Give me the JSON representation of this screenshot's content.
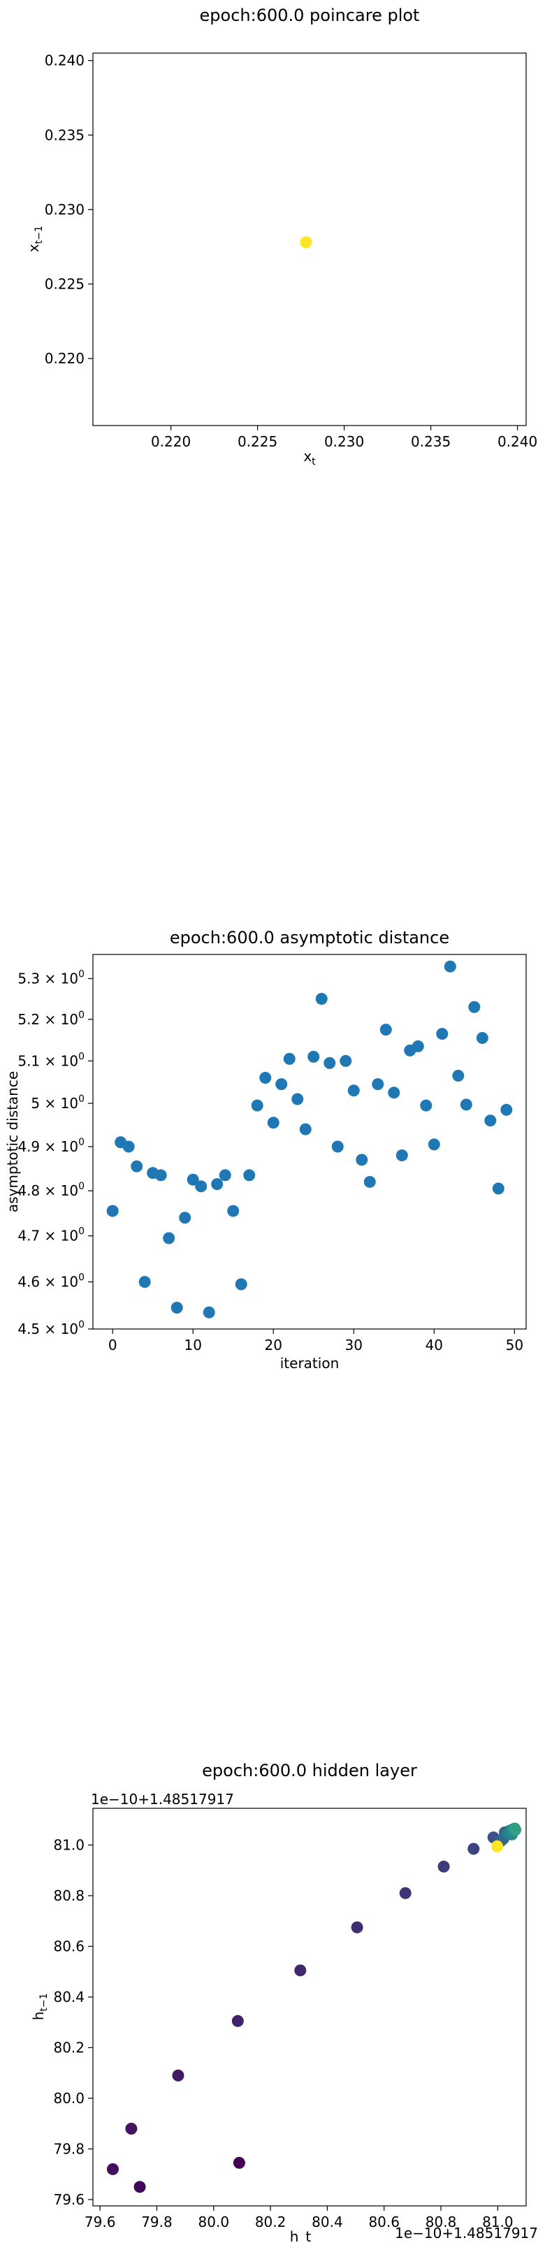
{
  "chart_data": [
    {
      "type": "scatter",
      "title": "epoch:600.0 poincare plot",
      "xlabel": "x_t",
      "ylabel": "x_{t-1}",
      "xlim": [
        0.2155,
        0.2405
      ],
      "ylim": [
        0.2155,
        0.2405
      ],
      "x_ticks": [
        0.22,
        0.225,
        0.23,
        0.235,
        0.24
      ],
      "x_tick_labels": [
        "0.220",
        "0.225",
        "0.230",
        "0.235",
        "0.240"
      ],
      "y_ticks": [
        0.22,
        0.225,
        0.23,
        0.235,
        0.24
      ],
      "y_tick_labels": [
        "0.220",
        "0.225",
        "0.230",
        "0.235",
        "0.240"
      ],
      "points": [
        {
          "x": 0.2278,
          "y": 0.2278
        }
      ],
      "point_color": "#fde725",
      "grid": false
    },
    {
      "type": "scatter",
      "title": "epoch:600.0 asymptotic distance",
      "xlabel": "iteration",
      "ylabel": "asymptotic distance",
      "y_scale": "log",
      "xlim": [
        -2.45,
        51.45
      ],
      "ylim": [
        4.5,
        5.36
      ],
      "x_ticks": [
        0,
        10,
        20,
        30,
        40,
        50
      ],
      "x_tick_labels": [
        "0",
        "10",
        "20",
        "30",
        "40",
        "50"
      ],
      "y_ticks": [
        4.5,
        4.6,
        4.7,
        4.8,
        4.9,
        5.0,
        5.1,
        5.2,
        5.3
      ],
      "y_tick_mantissas": [
        "4.5",
        "4.6",
        "4.7",
        "4.8",
        "4.9",
        "5",
        "5.1",
        "5.2",
        "5.3"
      ],
      "y_tick_suffix": "10",
      "y_tick_exponent": "0",
      "series_color": "#1f77b4",
      "x": [
        0,
        1,
        2,
        3,
        4,
        5,
        6,
        7,
        8,
        9,
        10,
        11,
        12,
        13,
        14,
        15,
        16,
        17,
        18,
        19,
        20,
        21,
        22,
        23,
        24,
        25,
        26,
        27,
        28,
        29,
        30,
        31,
        32,
        33,
        34,
        35,
        36,
        37,
        38,
        39,
        40,
        41,
        42,
        43,
        44,
        45,
        46,
        47,
        48,
        49
      ],
      "y": [
        4.755,
        4.91,
        4.9,
        4.855,
        4.6,
        4.84,
        4.835,
        4.695,
        4.545,
        4.74,
        4.825,
        4.81,
        4.535,
        4.815,
        4.835,
        4.755,
        4.595,
        4.835,
        4.995,
        5.06,
        4.955,
        5.045,
        5.105,
        5.01,
        4.94,
        5.11,
        5.25,
        5.095,
        4.9,
        5.1,
        5.03,
        4.87,
        4.82,
        5.045,
        5.175,
        5.025,
        4.88,
        5.125,
        5.135,
        4.995,
        4.905,
        5.165,
        5.33,
        5.065,
        4.997,
        5.23,
        5.155,
        4.96,
        4.805,
        4.985
      ],
      "grid": false
    },
    {
      "type": "scatter",
      "title": "epoch:600.0 hidden layer",
      "xlabel": "h_t",
      "ylabel": "h_{t-1}",
      "offset_text_x": "1e−10+1.48517917",
      "offset_text_y": "1e−10+1.48517917",
      "xlim": [
        79.575,
        81.1
      ],
      "ylim": [
        79.575,
        81.145
      ],
      "x_ticks": [
        79.6,
        79.8,
        80.0,
        80.2,
        80.4,
        80.6,
        80.8,
        81.0
      ],
      "x_tick_labels": [
        "79.6",
        "79.8",
        "80.0",
        "80.2",
        "80.4",
        "80.6",
        "80.8",
        "81.0"
      ],
      "y_ticks": [
        79.6,
        79.8,
        80.0,
        80.2,
        80.4,
        80.6,
        80.8,
        81.0
      ],
      "y_tick_labels": [
        "79.6",
        "79.8",
        "80.0",
        "80.2",
        "80.4",
        "80.6",
        "80.8",
        "81.0"
      ],
      "colormap": "viridis",
      "points": [
        {
          "x": 80.09,
          "y": 79.745,
          "t": 0.0
        },
        {
          "x": 79.74,
          "y": 79.65,
          "t": 0.02
        },
        {
          "x": 79.645,
          "y": 79.72,
          "t": 0.04
        },
        {
          "x": 79.71,
          "y": 79.88,
          "t": 0.06
        },
        {
          "x": 79.875,
          "y": 80.09,
          "t": 0.08
        },
        {
          "x": 80.085,
          "y": 80.305,
          "t": 0.1
        },
        {
          "x": 80.305,
          "y": 80.505,
          "t": 0.12
        },
        {
          "x": 80.505,
          "y": 80.675,
          "t": 0.14
        },
        {
          "x": 80.675,
          "y": 80.81,
          "t": 0.16
        },
        {
          "x": 80.81,
          "y": 80.915,
          "t": 0.18
        },
        {
          "x": 80.915,
          "y": 80.985,
          "t": 0.2
        },
        {
          "x": 80.985,
          "y": 81.03,
          "t": 0.24
        },
        {
          "x": 81.025,
          "y": 81.05,
          "t": 0.3
        },
        {
          "x": 81.04,
          "y": 81.055,
          "t": 0.36
        },
        {
          "x": 81.05,
          "y": 81.06,
          "t": 0.42
        },
        {
          "x": 81.055,
          "y": 81.062,
          "t": 0.48
        },
        {
          "x": 81.058,
          "y": 81.064,
          "t": 0.52
        },
        {
          "x": 81.06,
          "y": 81.065,
          "t": 0.55
        },
        {
          "x": 81.035,
          "y": 81.045,
          "t": 0.4
        },
        {
          "x": 81.045,
          "y": 81.05,
          "t": 0.45
        },
        {
          "x": 81.03,
          "y": 81.04,
          "t": 0.35
        },
        {
          "x": 81.055,
          "y": 81.055,
          "t": 0.5
        },
        {
          "x": 81.062,
          "y": 81.06,
          "t": 0.56
        },
        {
          "x": 81.02,
          "y": 81.025,
          "t": 0.33
        },
        {
          "x": 81.01,
          "y": 81.015,
          "t": 0.32
        },
        {
          "x": 81.05,
          "y": 81.042,
          "t": 0.46
        },
        {
          "x": 80.998,
          "y": 80.995,
          "t": 1.0
        }
      ],
      "grid": false
    }
  ]
}
